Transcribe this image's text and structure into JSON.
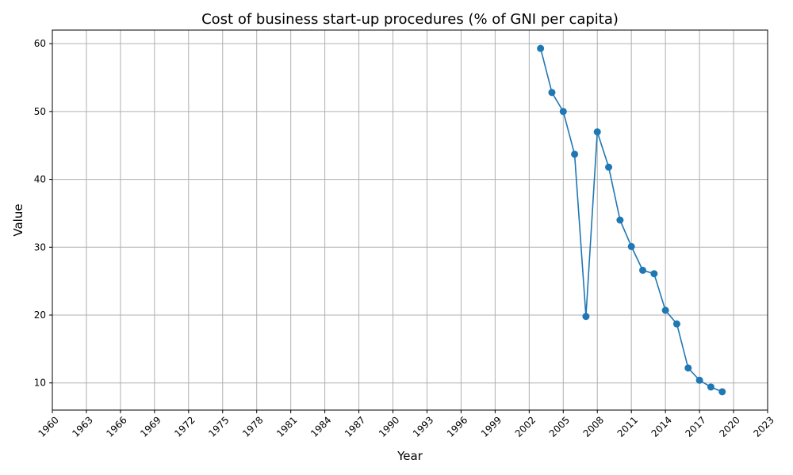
{
  "chart_data": {
    "type": "line",
    "title": "Cost of business start-up procedures (% of GNI per capita)",
    "xlabel": "Year",
    "ylabel": "Value",
    "xlim": [
      1960,
      2023
    ],
    "ylim": [
      6,
      62
    ],
    "xticks": [
      1960,
      1963,
      1966,
      1969,
      1972,
      1975,
      1978,
      1981,
      1984,
      1987,
      1990,
      1993,
      1996,
      1999,
      2002,
      2005,
      2008,
      2011,
      2014,
      2017,
      2020,
      2023
    ],
    "yticks": [
      10,
      20,
      30,
      40,
      50,
      60
    ],
    "grid": true,
    "marker": "circle",
    "color": "#1f77b4",
    "x": [
      2003,
      2004,
      2005,
      2006,
      2007,
      2008,
      2009,
      2010,
      2011,
      2012,
      2013,
      2014,
      2015,
      2016,
      2017,
      2018,
      2019
    ],
    "y": [
      59.3,
      52.8,
      50.0,
      43.7,
      19.8,
      47.0,
      41.8,
      34.0,
      30.1,
      26.6,
      26.1,
      20.7,
      18.7,
      12.2,
      10.4,
      9.4,
      8.7
    ]
  }
}
